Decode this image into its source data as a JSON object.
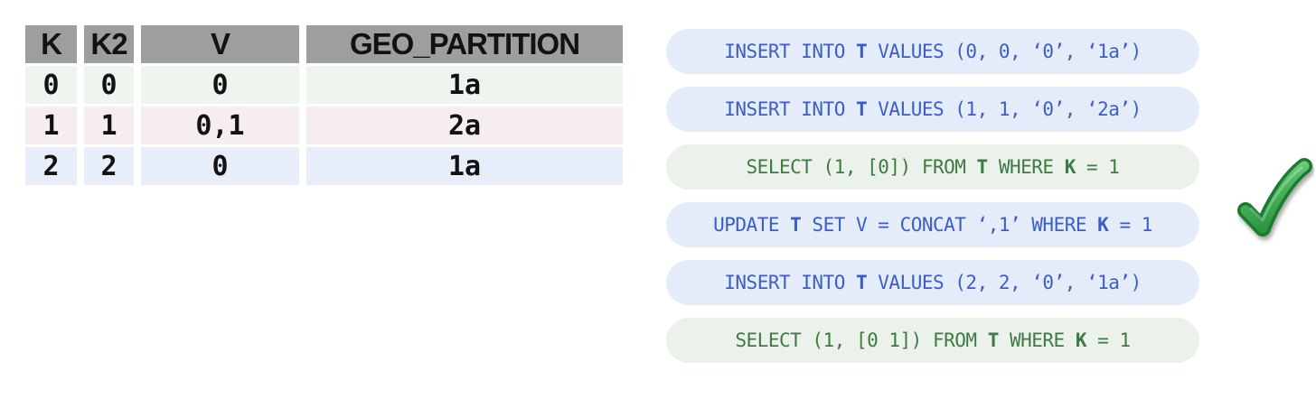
{
  "table": {
    "header_bg": "#9e9e9e",
    "columns": [
      "K",
      "K2",
      "V",
      "GEO_PARTITION"
    ],
    "rows": [
      {
        "bg": "#edf5ee",
        "cells": [
          "0",
          "0",
          "0",
          "1a"
        ]
      },
      {
        "bg": "#f6edf1",
        "cells": [
          "1",
          "1",
          "0,1",
          "2a"
        ]
      },
      {
        "bg": "#e7eefa",
        "cells": [
          "2",
          "2",
          "0",
          "1a"
        ]
      }
    ]
  },
  "statements": {
    "styles": {
      "blue": {
        "bg": "#e4ebf9",
        "text": "#3b5ec6"
      },
      "green": {
        "bg": "#eaf2eb",
        "text": "#3e7a41"
      }
    },
    "items": [
      {
        "name": "sql-insert-row0",
        "style": "blue",
        "segments": [
          {
            "t": "INSERT INTO "
          },
          {
            "t": "T",
            "b": true
          },
          {
            "t": " VALUES (0, 0, ‘0’, ‘1a’)"
          }
        ]
      },
      {
        "name": "sql-insert-row1",
        "style": "blue",
        "segments": [
          {
            "t": "INSERT INTO "
          },
          {
            "t": "T",
            "b": true
          },
          {
            "t": " VALUES (1, 1, ‘0’, ‘2a’)"
          }
        ]
      },
      {
        "name": "sql-select-single",
        "style": "green",
        "segments": [
          {
            "t": "SELECT (1, [0]) FROM "
          },
          {
            "t": "T",
            "b": true
          },
          {
            "t": " WHERE "
          },
          {
            "t": "K",
            "b": true
          },
          {
            "t": " = 1"
          }
        ]
      },
      {
        "name": "sql-update-concat",
        "style": "blue",
        "segments": [
          {
            "t": "UPDATE "
          },
          {
            "t": "T",
            "b": true
          },
          {
            "t": " SET V = CONCAT ‘,1’ WHERE "
          },
          {
            "t": "K",
            "b": true
          },
          {
            "t": " = 1"
          }
        ]
      },
      {
        "name": "sql-insert-row2",
        "style": "blue",
        "segments": [
          {
            "t": "INSERT INTO "
          },
          {
            "t": "T",
            "b": true
          },
          {
            "t": " VALUES (2, 2, ‘0’, ‘1a’)"
          }
        ]
      },
      {
        "name": "sql-select-list",
        "style": "green",
        "segments": [
          {
            "t": "SELECT (1, [0 1]) FROM "
          },
          {
            "t": "T",
            "b": true
          },
          {
            "t": " WHERE "
          },
          {
            "t": "K",
            "b": true
          },
          {
            "t": " = 1"
          }
        ]
      }
    ]
  },
  "checkmark": {
    "icon": "checkmark-icon",
    "meaning": "success",
    "outline_color": "#1f7a2e",
    "fill_top": "#8fd99b",
    "fill_bottom": "#2e9442"
  }
}
